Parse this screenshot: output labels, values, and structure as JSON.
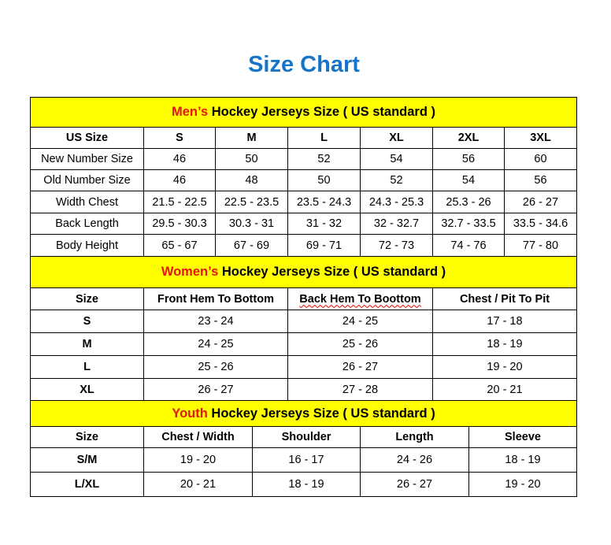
{
  "title": "Size Chart",
  "sections": [
    {
      "label_red": "Men’s",
      "label_rest": " Hockey Jerseys Size ( US standard )",
      "columns": [
        "US Size",
        "S",
        "M",
        "L",
        "XL",
        "2XL",
        "3XL"
      ],
      "rows": [
        [
          "New Number Size",
          "46",
          "50",
          "52",
          "54",
          "56",
          "60"
        ],
        [
          "Old Number Size",
          "46",
          "48",
          "50",
          "52",
          "54",
          "56"
        ],
        [
          "Width Chest",
          "21.5 - 22.5",
          "22.5 - 23.5",
          "23.5 - 24.3",
          "24.3 - 25.3",
          "25.3 - 26",
          "26 - 27"
        ],
        [
          "Back Length",
          "29.5 - 30.3",
          "30.3 - 31",
          "31 - 32",
          "32 - 32.7",
          "32.7 - 33.5",
          "33.5 - 34.6"
        ],
        [
          "Body Height",
          "65 - 67",
          "67 - 69",
          "69 - 71",
          "72 - 73",
          "74 - 76",
          "77 - 80"
        ]
      ]
    },
    {
      "label_red": "Women’s",
      "label_rest": " Hockey Jerseys Size ( US standard )",
      "columns": [
        "Size",
        "Front Hem To Bottom",
        "Back Hem To Boottom",
        "Chest / Pit To Pit"
      ],
      "rows": [
        [
          "S",
          "23 - 24",
          "24 - 25",
          "17 - 18"
        ],
        [
          "M",
          "24 - 25",
          "25 - 26",
          "18 - 19"
        ],
        [
          "L",
          "25 - 26",
          "26 - 27",
          "19 - 20"
        ],
        [
          "XL",
          "26 - 27",
          "27 - 28",
          "20 - 21"
        ]
      ]
    },
    {
      "label_red": "Youth",
      "label_rest": " Hockey Jerseys Size ( US standard )",
      "columns": [
        "Size",
        "Chest / Width",
        "Shoulder",
        "Length",
        "Sleeve"
      ],
      "rows": [
        [
          "S/M",
          "19 - 20",
          "16 - 17",
          "24 - 26",
          "18 - 19"
        ],
        [
          "L/XL",
          "20 - 21",
          "18 - 19",
          "26 - 27",
          "19 - 20"
        ]
      ]
    }
  ],
  "colors": {
    "title": "#1874c4",
    "header_bg": "#ffff00",
    "accent_red": "#e8140c"
  }
}
